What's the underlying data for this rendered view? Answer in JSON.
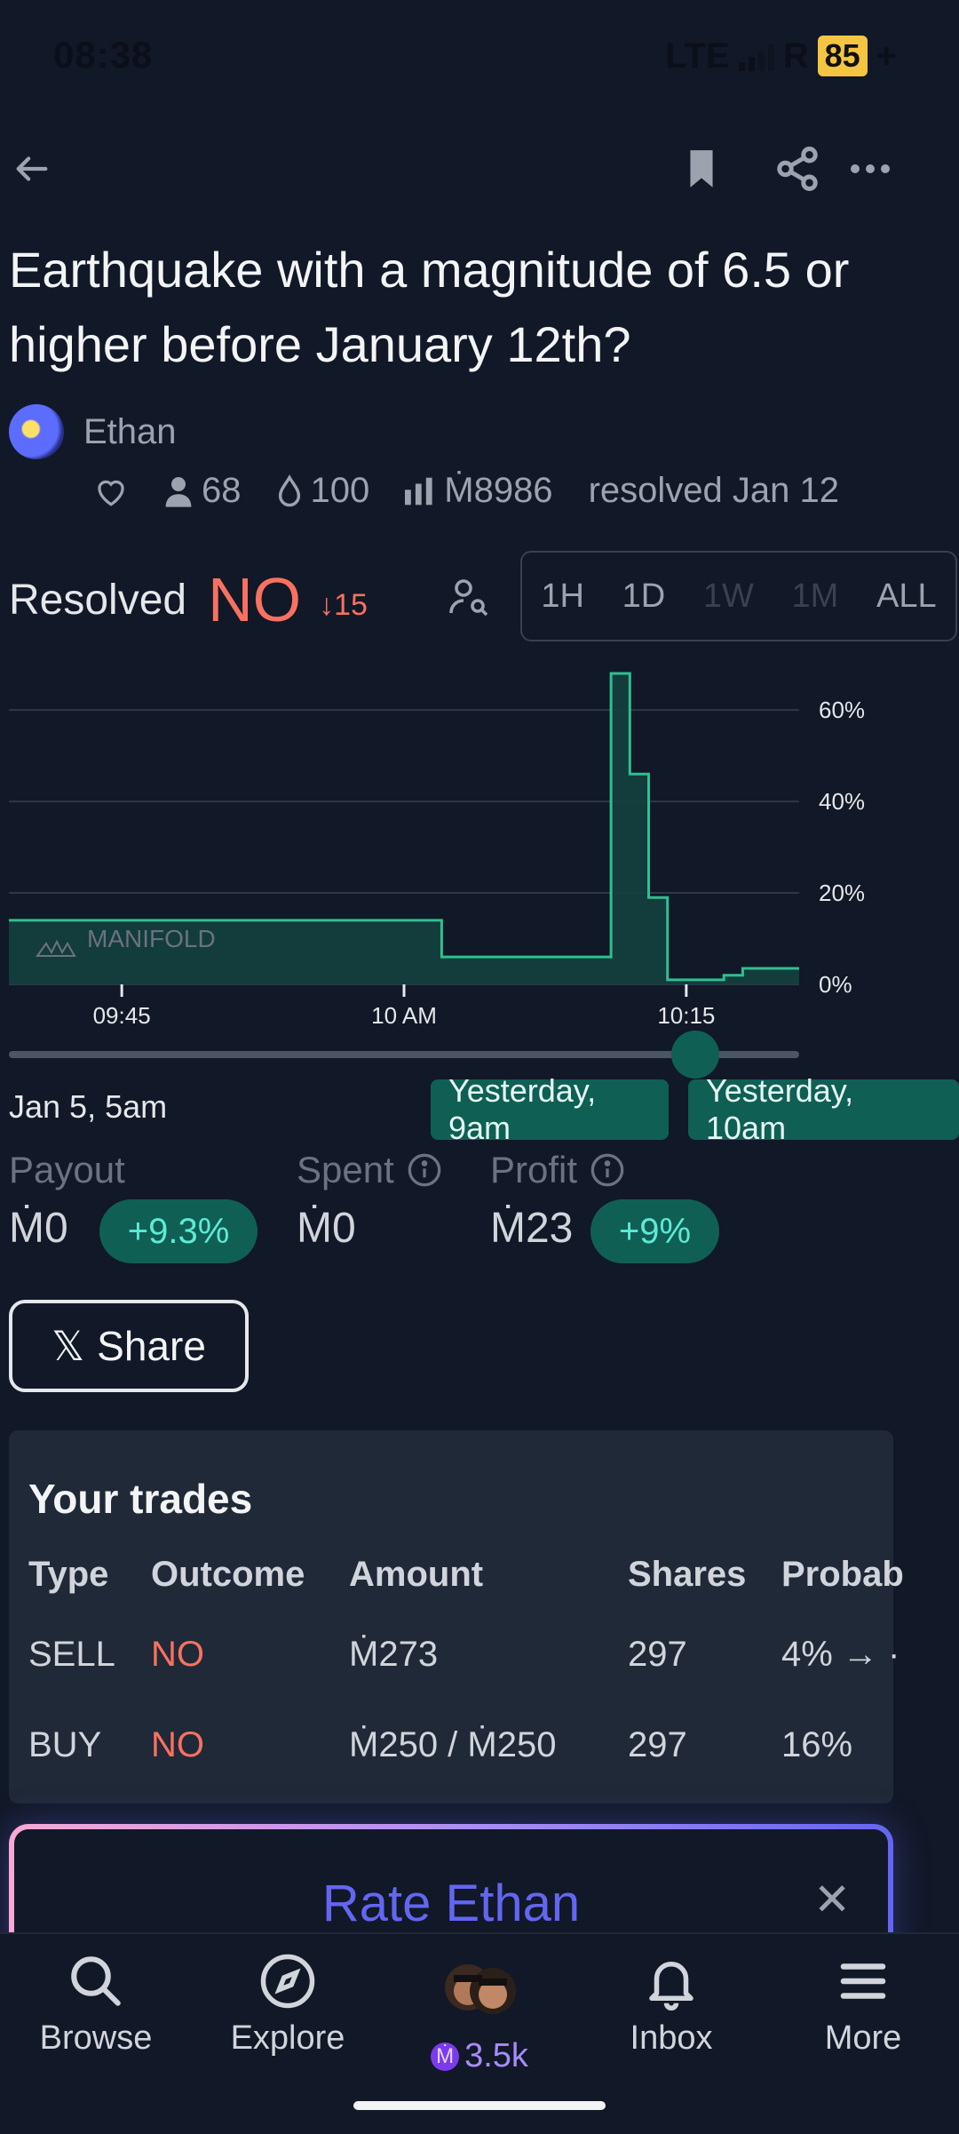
{
  "status_bar": {
    "time": "08:38",
    "network": "LTE",
    "roaming": "R",
    "battery": "85",
    "battery_plus": "+"
  },
  "market": {
    "title": "Earthquake with a magnitude of 6.5 or higher before January 12th?",
    "author": "Ethan",
    "traders": "68",
    "liquidity": "100",
    "volume": "Ṁ8986",
    "resolved_text": "resolved Jan 12",
    "resolved_label": "Resolved",
    "resolution": "NO",
    "change": "15"
  },
  "time_ranges": [
    "1H",
    "1D",
    "1W",
    "1M",
    "ALL"
  ],
  "chart_data": {
    "type": "area",
    "x_tick_labels": [
      "09:45",
      "10 AM",
      "10:15"
    ],
    "y_tick_labels": [
      "60%",
      "40%",
      "20%",
      "0%"
    ],
    "ylim": [
      0,
      0.68
    ],
    "watermark": "MANIFOLD",
    "series": [
      {
        "points": [
          [
            "09:39",
            0.14
          ],
          [
            "10:02",
            0.14
          ],
          [
            "10:02",
            0.06
          ],
          [
            "10:11",
            0.06
          ],
          [
            "10:11",
            0.68
          ],
          [
            "10:12",
            0.68
          ],
          [
            "10:12",
            0.46
          ],
          [
            "10:13",
            0.46
          ],
          [
            "10:13",
            0.19
          ],
          [
            "10:14",
            0.19
          ],
          [
            "10:14",
            0.01
          ],
          [
            "10:17",
            0.01
          ],
          [
            "10:17",
            0.02
          ],
          [
            "10:18",
            0.02
          ],
          [
            "10:18",
            0.035
          ],
          [
            "10:21",
            0.035
          ]
        ]
      }
    ],
    "grid": true
  },
  "timeline": {
    "start": "Jan 5, 5am",
    "marker": "Yesterday, 9am",
    "end": "Yesterday, 10am"
  },
  "metrics": {
    "payout_label": "Payout",
    "payout_value": "Ṁ0",
    "payout_change": "+9.3%",
    "spent_label": "Spent",
    "spent_value": "Ṁ0",
    "profit_label": "Profit",
    "profit_value": "Ṁ23",
    "profit_change": "+9%"
  },
  "share_button": {
    "glyph": "𝕏",
    "label": "Share"
  },
  "trades": {
    "title": "Your trades",
    "headers": [
      "Type",
      "Outcome",
      "Amount",
      "Shares",
      "Probab"
    ],
    "rows": [
      {
        "type": "SELL",
        "outcome": "NO",
        "amount": "Ṁ273",
        "shares": "297",
        "prob": "4% → ·"
      },
      {
        "type": "BUY",
        "outcome": "NO",
        "amount": "Ṁ250 / Ṁ250",
        "shares": "297",
        "prob": "16%"
      }
    ]
  },
  "rate_card": {
    "label": "Rate Ethan",
    "close": "✕"
  },
  "nav": {
    "browse": "Browse",
    "explore": "Explore",
    "balance": "3.5k",
    "balance_symbol": "Ṁ",
    "inbox": "Inbox",
    "more": "More"
  },
  "colors": {
    "accent_green": "#0f5f55",
    "chart_line": "#2fbf8f",
    "no_red": "#f87160",
    "rate_purple": "#6366f1"
  }
}
